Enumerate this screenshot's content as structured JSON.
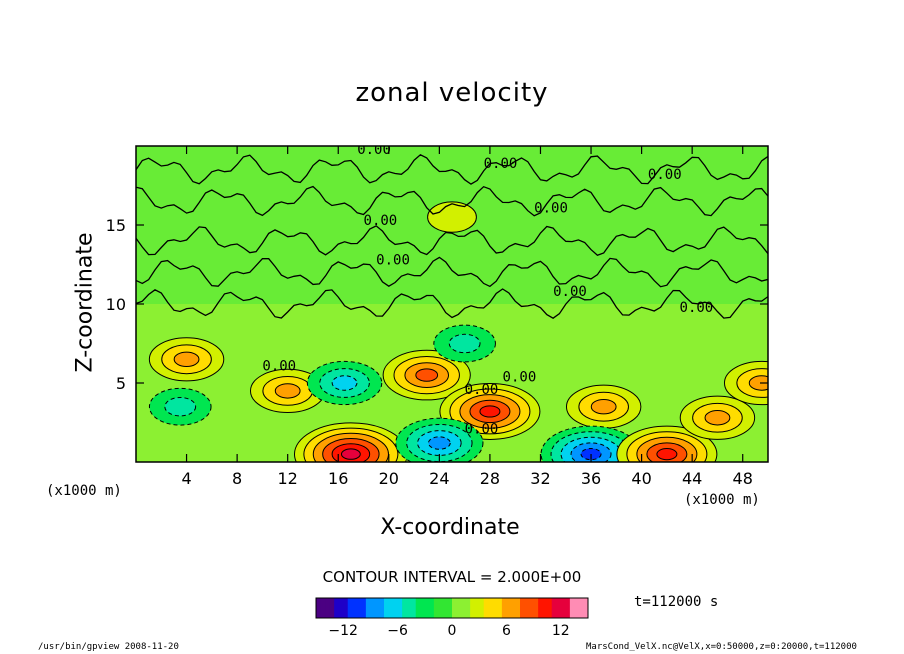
{
  "chart_data": {
    "type": "heatmap",
    "title": "zonal velocity",
    "xlabel": "X-coordinate",
    "ylabel": "Z-coordinate",
    "x_unit_label": "(x1000 m)",
    "xlim": [
      0,
      50
    ],
    "ylim": [
      0,
      20
    ],
    "x_ticks": [
      4,
      8,
      12,
      16,
      20,
      24,
      28,
      32,
      36,
      40,
      44,
      48
    ],
    "y_ticks": [
      5,
      10,
      15
    ],
    "contour_labels": [
      "0.00",
      "0.00",
      "0.00",
      "0.00",
      "0.00",
      "0.00",
      "0.00",
      "0.00",
      "0.00",
      "0.00",
      "0.00",
      "0.00"
    ],
    "contour_interval_text": "CONTOUR INTERVAL = 2.000E+00",
    "colorbar": {
      "min": -15,
      "max": 15,
      "ticks": [
        -12,
        -6,
        0,
        6,
        12
      ],
      "colors_low_to_high": [
        "#4b0082",
        "#1e00c8",
        "#0032ff",
        "#0096ff",
        "#00d2f0",
        "#00e6a0",
        "#00e650",
        "#32e632",
        "#8cf032",
        "#d2f000",
        "#ffdc00",
        "#ffa000",
        "#ff5000",
        "#ff1400",
        "#e6003c",
        "#ff8cb4"
      ]
    },
    "features": [
      {
        "type": "positive",
        "x": 4,
        "z": 6.5,
        "value": 6
      },
      {
        "type": "negative",
        "x": 3.5,
        "z": 3.5,
        "value": -4
      },
      {
        "type": "positive",
        "x": 12,
        "z": 4.5,
        "value": 6
      },
      {
        "type": "negative",
        "x": 16.5,
        "z": 5,
        "value": -6
      },
      {
        "type": "positive",
        "x": 17,
        "z": 0.5,
        "value": 12
      },
      {
        "type": "positive",
        "x": 23,
        "z": 5.5,
        "value": 8
      },
      {
        "type": "positive",
        "x": 28,
        "z": 3.2,
        "value": 10
      },
      {
        "type": "negative",
        "x": 24,
        "z": 1.2,
        "value": -8
      },
      {
        "type": "positive",
        "x": 37,
        "z": 3.5,
        "value": 6
      },
      {
        "type": "negative",
        "x": 36,
        "z": 0.5,
        "value": -10
      },
      {
        "type": "positive",
        "x": 42,
        "z": 0.5,
        "value": 10
      },
      {
        "type": "positive",
        "x": 46,
        "z": 2.8,
        "value": 6
      },
      {
        "type": "positive",
        "x": 49.5,
        "z": 5,
        "value": 6
      },
      {
        "type": "negative",
        "x": 26,
        "z": 7.5,
        "value": -4
      },
      {
        "type": "positive",
        "x": 25,
        "z": 15.5,
        "value": 2
      }
    ]
  },
  "time_label": "t=112000 s",
  "footer": {
    "left": "/usr/bin/gpview  2008-11-20",
    "right": "MarsCond_VelX.nc@VelX,x=0:50000,z=0:20000,t=112000"
  }
}
